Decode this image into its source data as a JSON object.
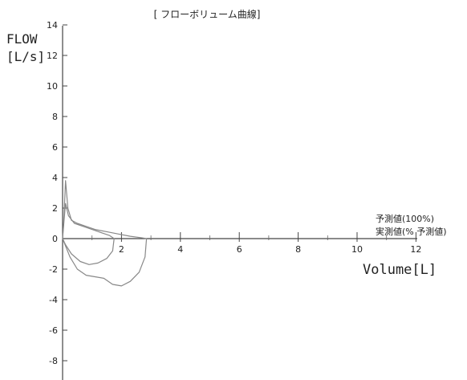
{
  "chart_data": {
    "type": "line",
    "title": "[ フローボリューム曲線]",
    "ylabel_line1": "FLOW",
    "ylabel_line2": "[L/s]",
    "xlabel": "Volume[L]",
    "xlim": [
      0,
      12
    ],
    "ylim": [
      -9,
      14
    ],
    "x_ticks": [
      2,
      4,
      6,
      8,
      10,
      12
    ],
    "y_ticks": [
      14,
      12,
      10,
      8,
      6,
      4,
      2,
      0,
      -2,
      -4,
      -6,
      -8
    ],
    "legend": {
      "placement": "right",
      "entries": [
        "予測値(100%)",
        "実測値(% 予測値)"
      ]
    },
    "series": [
      {
        "line_color": "#888888",
        "x": [
          0.0,
          0.05,
          0.1,
          0.18,
          0.3,
          0.5,
          0.8,
          1.1,
          1.5,
          1.9,
          2.3,
          2.7,
          2.85,
          2.8,
          2.6,
          2.3,
          2.0,
          1.7,
          1.4,
          1.1,
          0.8,
          0.5,
          0.25,
          0.0
        ],
        "y": [
          0.0,
          1.5,
          3.8,
          2.0,
          1.2,
          1.0,
          0.8,
          0.6,
          0.45,
          0.3,
          0.15,
          0.05,
          0.0,
          -1.2,
          -2.2,
          -2.8,
          -3.1,
          -3.0,
          -2.6,
          -2.5,
          -2.4,
          -2.0,
          -1.2,
          0.0
        ]
      },
      {
        "line_color": "#888888",
        "x": [
          0.0,
          0.05,
          0.1,
          0.2,
          0.4,
          0.7,
          1.0,
          1.3,
          1.6,
          1.75,
          1.7,
          1.5,
          1.2,
          0.9,
          0.6,
          0.3,
          0.1,
          0.0
        ],
        "y": [
          0.0,
          1.2,
          2.3,
          1.5,
          1.0,
          0.8,
          0.6,
          0.4,
          0.2,
          0.0,
          -0.8,
          -1.3,
          -1.6,
          -1.7,
          -1.5,
          -1.0,
          -0.4,
          0.0
        ]
      }
    ]
  }
}
